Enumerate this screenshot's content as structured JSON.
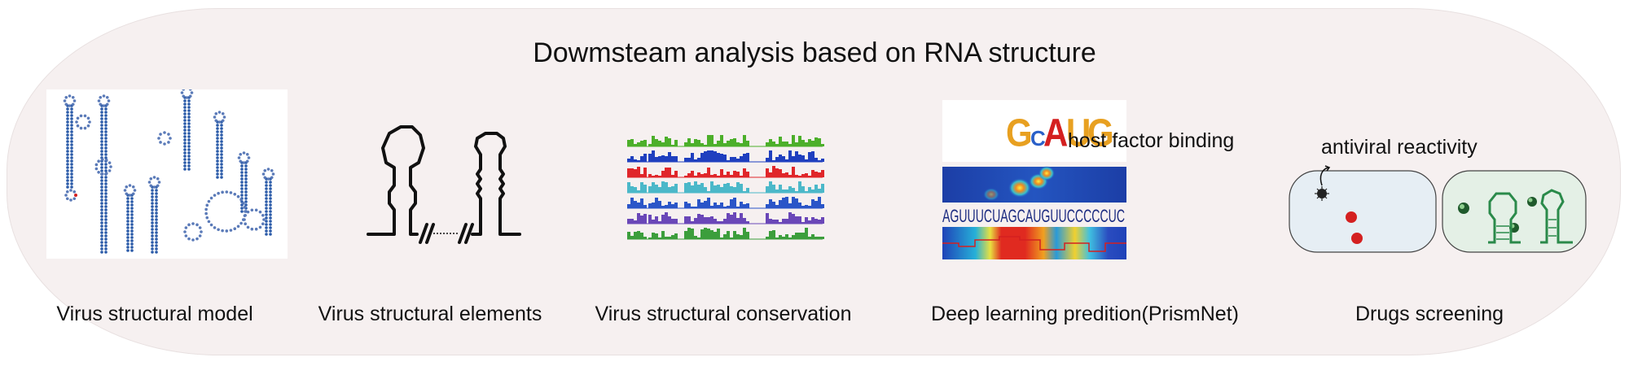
{
  "title": "Dowmsteam analysis based on RNA structure",
  "panels": [
    {
      "label": "Virus structural model"
    },
    {
      "label": "Virus structural elements"
    },
    {
      "label": "Virus structural conservation"
    },
    {
      "label": "Deep learning predition(PrismNet)"
    },
    {
      "label": "Drugs screening"
    }
  ],
  "deep_learning": {
    "motif_annotation": "host factor binding",
    "motif_letters": "GCAUG",
    "sequence": "AGUUUCUAGCAUGUUCCCCCUC"
  },
  "drugs": {
    "annotation": "antiviral reactivity"
  },
  "colors": {
    "background": "#f6f0f0",
    "conservation_tracks": [
      "#4caf2a",
      "#1f3fbf",
      "#e0262a",
      "#4bb8c9",
      "#2a55c8",
      "#6a47b8",
      "#3c9e3c"
    ],
    "drug_dot": "#d42020",
    "cell_fill": "#e6eef4",
    "cell_fill_2": "#e4f0e6",
    "hairpin_green": "#2a8a4a"
  }
}
